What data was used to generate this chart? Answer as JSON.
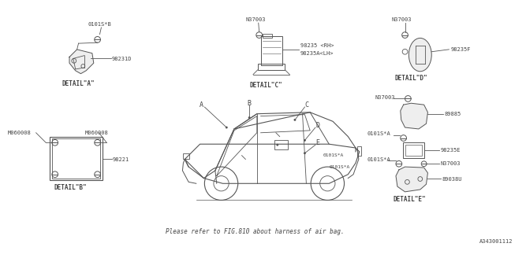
{
  "bg_color": "#ffffff",
  "fig_width": 6.4,
  "fig_height": 3.2,
  "bottom_text": "Please refer to FIG.810 about harness of air bag.",
  "diagram_id": "A343001112",
  "labels": {
    "detail_a": "DETAIL\"A\"",
    "detail_b": "DETAIL\"B\"",
    "detail_c": "DETAIL\"C\"",
    "detail_d": "DETAIL\"D\"",
    "detail_e": "DETAIL\"E\"",
    "part_0101SB": "0101S*B",
    "part_98231D": "98231D",
    "part_N37003_c": "N37003",
    "part_98235RH": "98235 <RH>",
    "part_98235ALH": "98235A<LH>",
    "part_N37003_d": "N37003",
    "part_98235F": "98235F",
    "part_M060008_1": "M060008",
    "part_M060008_2": "M060008",
    "part_98221": "98221",
    "part_N37003_e1": "N37003",
    "part_89885": "89885",
    "part_0101SA_1": "0101S*A",
    "part_98235E": "98235E",
    "part_N37003_e2": "N37003",
    "part_89038U": "89038U",
    "part_0101SA_2": "0101S*A"
  },
  "line_color": "#555555",
  "text_color": "#444444",
  "font_size_small": 5.0,
  "font_size_detail": 5.5
}
